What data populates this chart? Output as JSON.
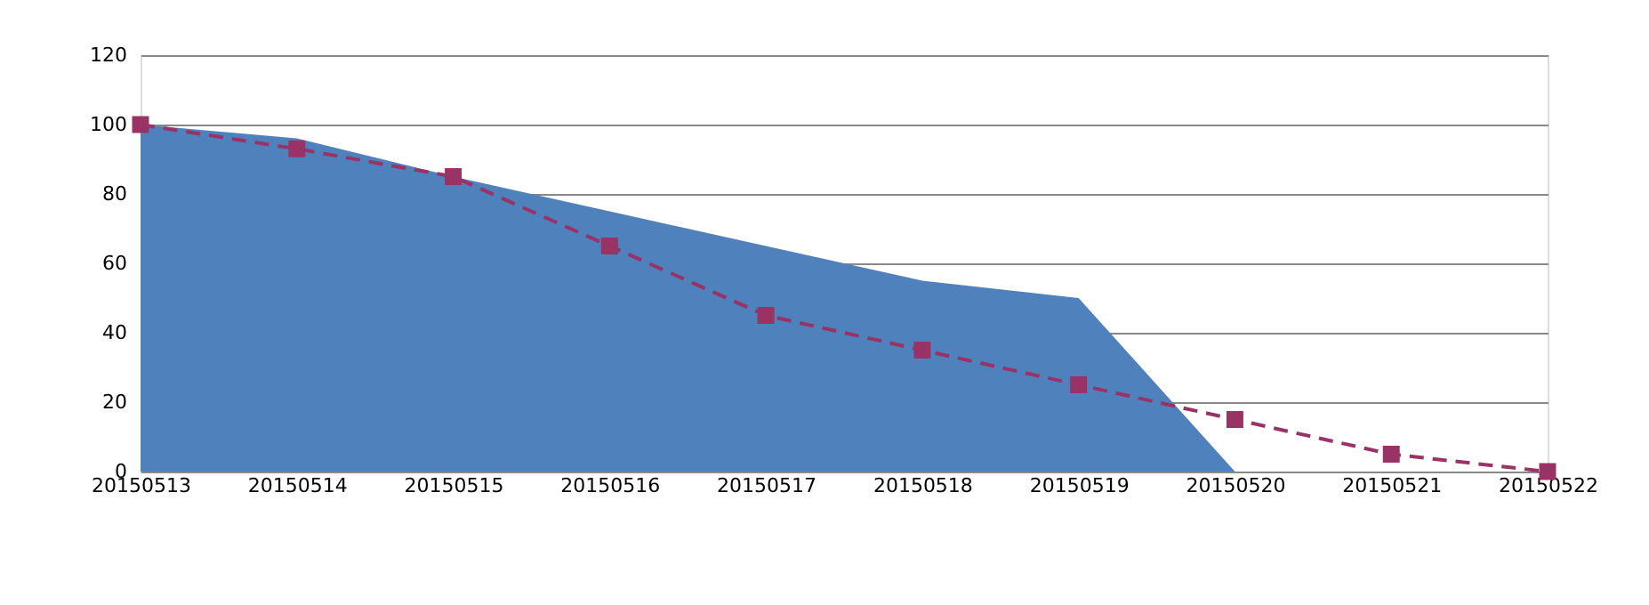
{
  "chart_data": {
    "type": "area",
    "categories": [
      "20150513",
      "20150514",
      "20150515",
      "20150516",
      "20150517",
      "20150518",
      "20150519",
      "20150520",
      "20150521",
      "20150522"
    ],
    "series": [
      {
        "color": "#4f81bd",
        "values": [
          100,
          96,
          85,
          75,
          65,
          55,
          50,
          0,
          null,
          null
        ]
      },
      {
        "type": "line",
        "color": "#993366",
        "marker": "square",
        "line_style": "dashed",
        "values": [
          100,
          93,
          85,
          65,
          45,
          35,
          25,
          15,
          5,
          0
        ]
      }
    ],
    "ylim": [
      0,
      120
    ],
    "yticks": [
      0,
      20,
      40,
      60,
      80,
      100,
      120
    ],
    "grid": "y"
  }
}
